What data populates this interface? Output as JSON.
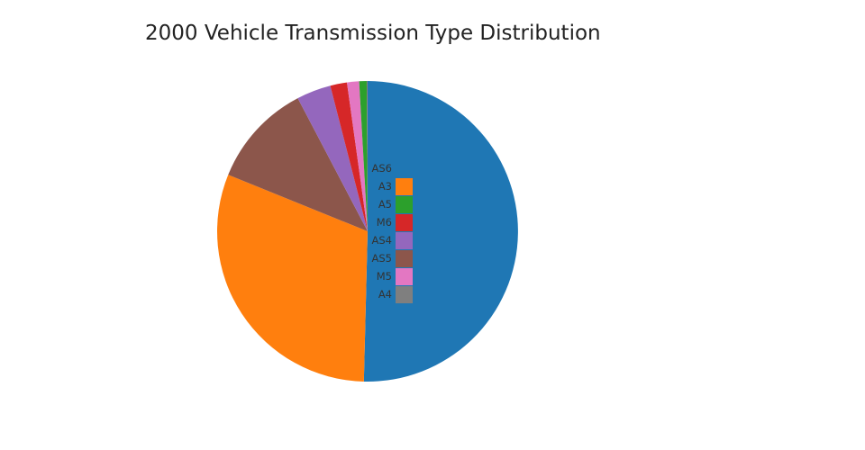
{
  "chart_data": {
    "type": "pie",
    "title": "2000 Vehicle Transmission Type Distribution",
    "slices": [
      {
        "label": "AS6",
        "value": 50.5,
        "color": "#1f77b4"
      },
      {
        "label": "A3",
        "value": 30.8,
        "color": "#ff7f0e"
      },
      {
        "label": "AS5",
        "value": 11.2,
        "color": "#8c564b"
      },
      {
        "label": "AS4",
        "value": 3.7,
        "color": "#9467bd"
      },
      {
        "label": "M6",
        "value": 1.8,
        "color": "#d62728"
      },
      {
        "label": "M5",
        "value": 1.3,
        "color": "#e377c2"
      },
      {
        "label": "A5",
        "value": 0.8,
        "color": "#2ca02c"
      },
      {
        "label": "A4",
        "value": 0.1,
        "color": "#7f7f7f"
      }
    ],
    "legend": {
      "placement": "center",
      "order": [
        "AS6",
        "A3",
        "A5",
        "M6",
        "AS4",
        "AS5",
        "M5",
        "A4"
      ],
      "swatch_hidden_for": [
        "AS6"
      ]
    }
  }
}
